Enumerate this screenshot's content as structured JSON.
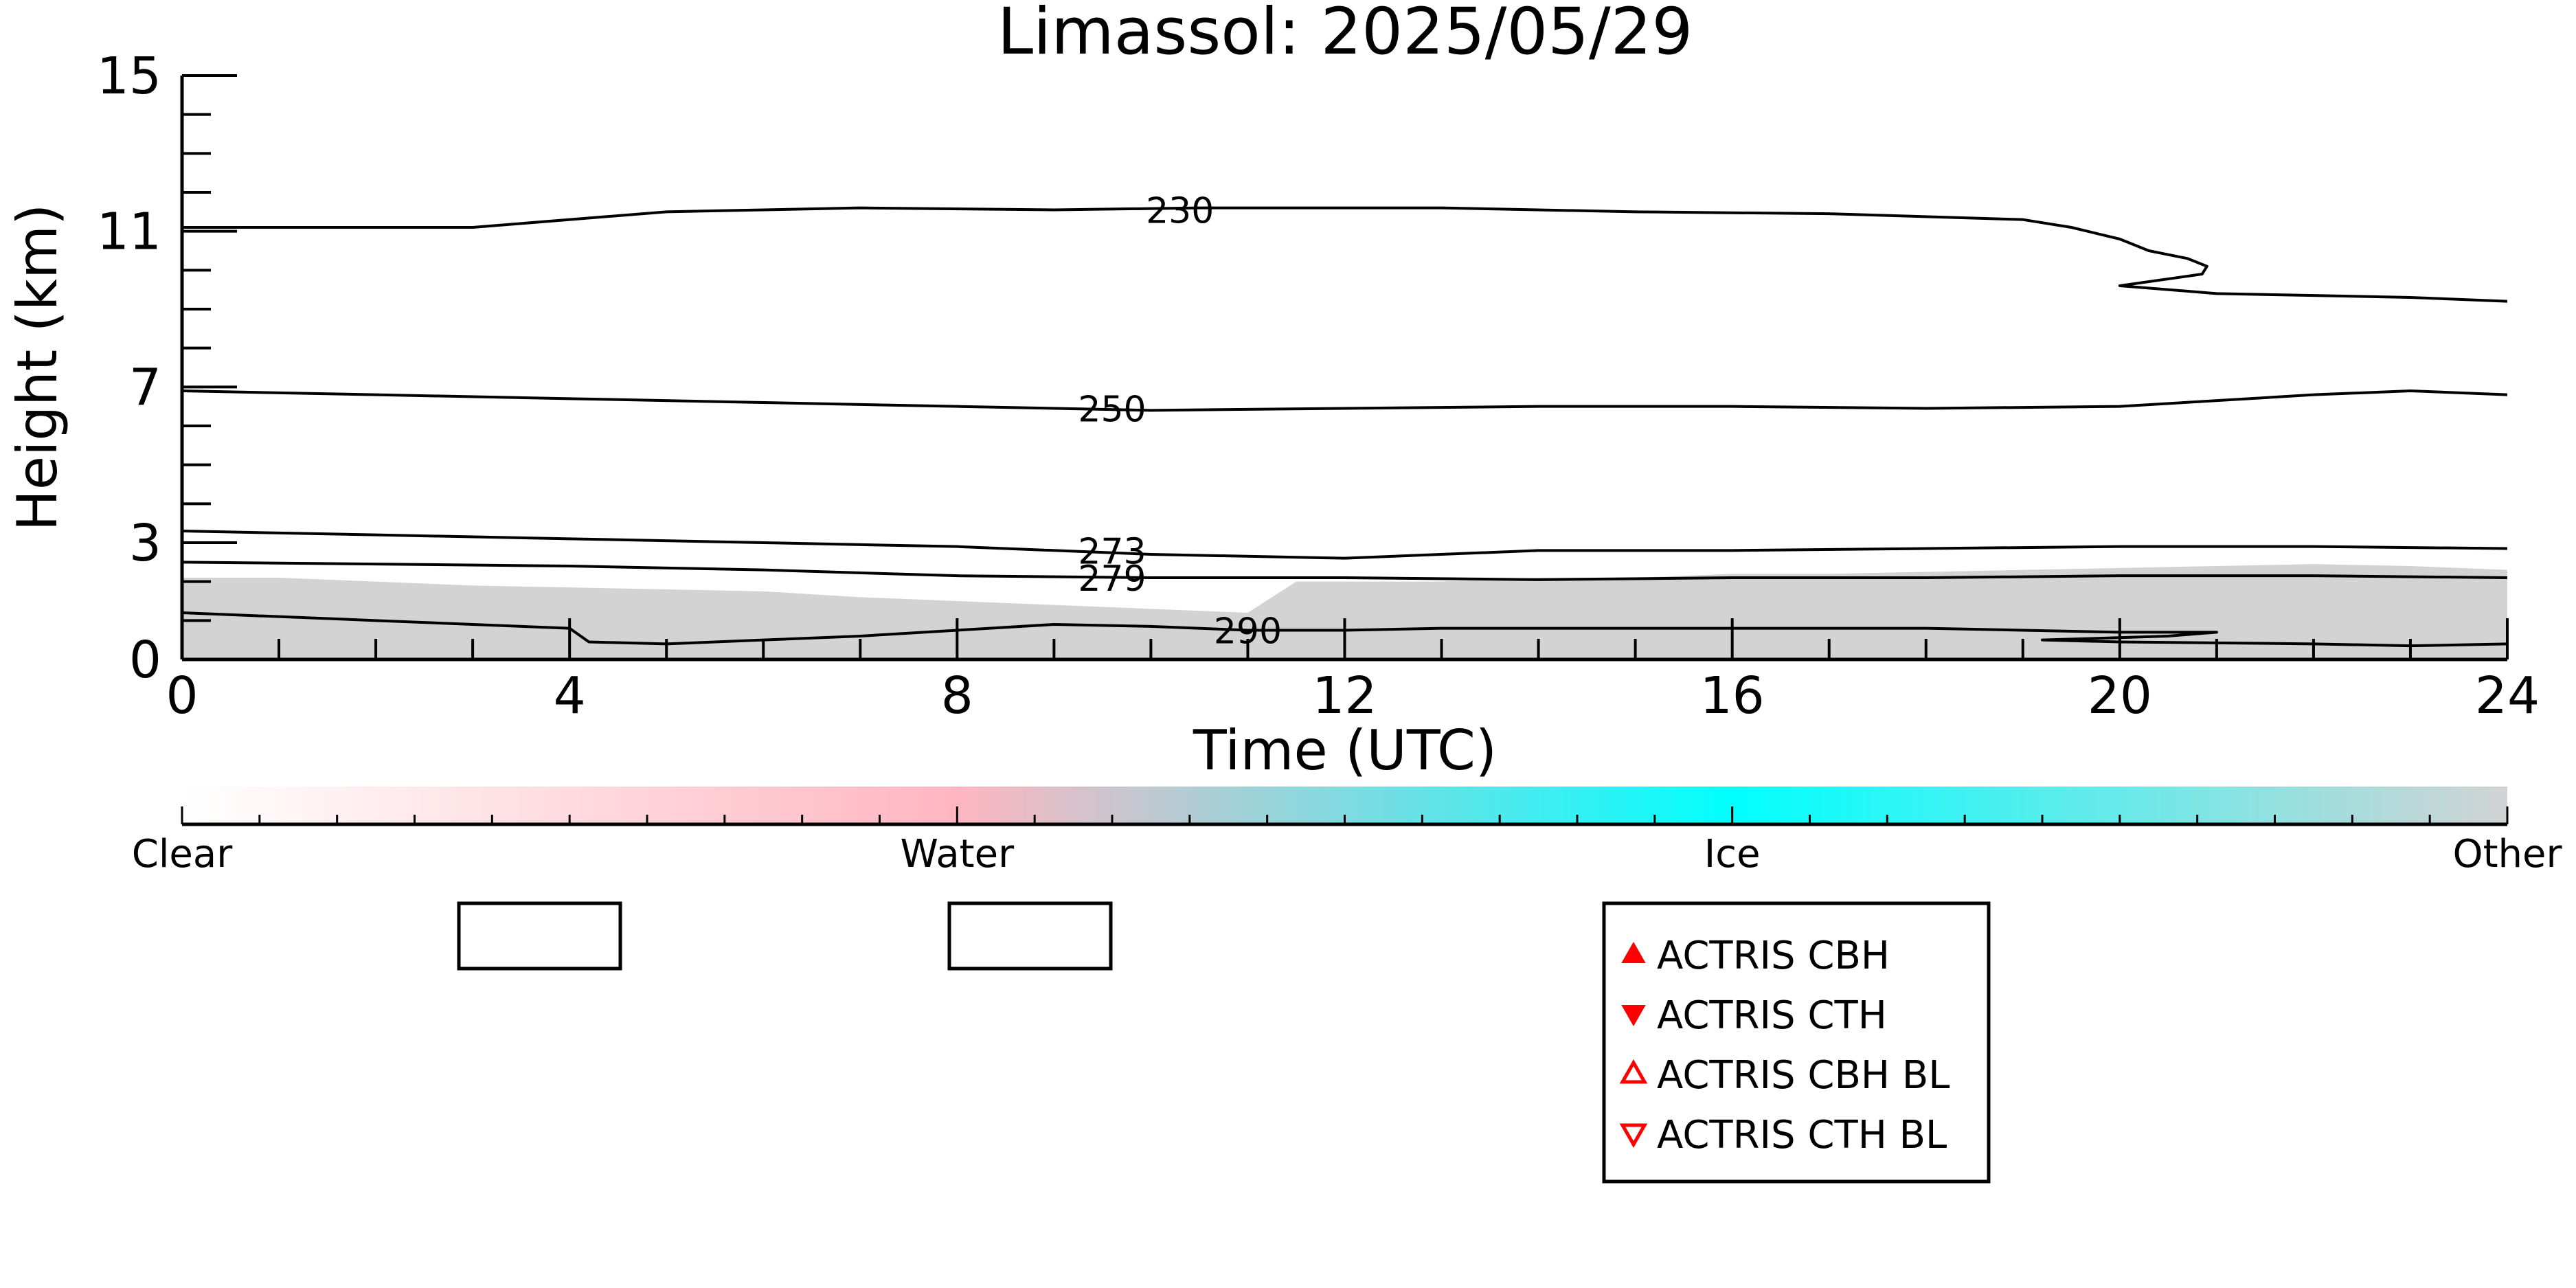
{
  "chart_data": {
    "type": "line",
    "title": "Limassol: 2025/05/29",
    "xlabel": "Time (UTC)",
    "ylabel": "Height (km)",
    "xlim": [
      0,
      24
    ],
    "ylim": [
      0,
      15
    ],
    "x_ticks": [
      "0",
      "4",
      "8",
      "12",
      "16",
      "20",
      "24"
    ],
    "y_ticks": [
      "0",
      "3",
      "7",
      "11",
      "15"
    ],
    "grid": false,
    "colors": {
      "cloud_fill": "#d3d3d3",
      "contour": "#000000",
      "marker": "#ff0000",
      "clear": "#ffffff",
      "water": "#ffb6c1",
      "ice": "#00ffff",
      "other": "#d3d3d3"
    },
    "cloud_layer": {
      "x": [
        0,
        1,
        2,
        3,
        4,
        5,
        6,
        7,
        8,
        9,
        10,
        11,
        11.5,
        12,
        13,
        14,
        15,
        16,
        17,
        18,
        19,
        20,
        21,
        22,
        23,
        24
      ],
      "top": [
        2.1,
        2.1,
        2.0,
        1.9,
        1.85,
        1.8,
        1.75,
        1.6,
        1.5,
        1.4,
        1.3,
        1.2,
        2.0,
        2.0,
        2.0,
        2.1,
        2.1,
        2.2,
        2.2,
        2.25,
        2.3,
        2.35,
        2.4,
        2.45,
        2.4,
        2.3
      ]
    },
    "series": [
      {
        "name": "230",
        "x": [
          0,
          3,
          5,
          7,
          9,
          10.5,
          12,
          13,
          15,
          17,
          19,
          19.5,
          20,
          20.3,
          20.7,
          20.9,
          20.85,
          20,
          21,
          22,
          23,
          24
        ],
        "y": [
          11.1,
          11.1,
          11.5,
          11.6,
          11.55,
          11.6,
          11.6,
          11.6,
          11.5,
          11.45,
          11.3,
          11.1,
          10.8,
          10.5,
          10.3,
          10.1,
          9.9,
          9.6,
          9.4,
          9.35,
          9.3,
          9.2
        ]
      },
      {
        "name": "250",
        "x": [
          0,
          2,
          4,
          6,
          8,
          10,
          12,
          14,
          16,
          18,
          20,
          22,
          23,
          24
        ],
        "y": [
          6.9,
          6.8,
          6.7,
          6.6,
          6.5,
          6.4,
          6.45,
          6.5,
          6.5,
          6.45,
          6.5,
          6.8,
          6.9,
          6.8
        ]
      },
      {
        "name": "273",
        "x": [
          0,
          2,
          4,
          6,
          8,
          10,
          12,
          14,
          16,
          18,
          20,
          22,
          24
        ],
        "y": [
          3.3,
          3.2,
          3.1,
          3.0,
          2.9,
          2.7,
          2.6,
          2.8,
          2.8,
          2.85,
          2.9,
          2.9,
          2.85
        ]
      },
      {
        "name": "279",
        "x": [
          0,
          2,
          4,
          6,
          8,
          10,
          12,
          14,
          16,
          18,
          20,
          22,
          24
        ],
        "y": [
          2.5,
          2.45,
          2.4,
          2.3,
          2.15,
          2.1,
          2.1,
          2.05,
          2.1,
          2.1,
          2.15,
          2.15,
          2.1
        ]
      },
      {
        "name": "290",
        "x": [
          0,
          2,
          4,
          4.2,
          5,
          6,
          7,
          8,
          9,
          10,
          11,
          12,
          13,
          14,
          15,
          16,
          17,
          18,
          19,
          20,
          21,
          20.5,
          19.2,
          20,
          22,
          23,
          24
        ],
        "y": [
          1.2,
          1.0,
          0.8,
          0.45,
          0.4,
          0.5,
          0.6,
          0.75,
          0.9,
          0.85,
          0.75,
          0.75,
          0.8,
          0.8,
          0.8,
          0.8,
          0.8,
          0.8,
          0.75,
          0.7,
          0.7,
          0.6,
          0.5,
          0.45,
          0.4,
          0.35,
          0.4
        ]
      }
    ],
    "contour_labels": [
      {
        "text": "230",
        "x": 10.3,
        "y": 11.55
      },
      {
        "text": "250",
        "x": 9.6,
        "y": 6.45
      },
      {
        "text": "273",
        "x": 9.6,
        "y": 2.8
      },
      {
        "text": "279",
        "x": 9.6,
        "y": 2.1
      },
      {
        "text": "290",
        "x": 11.0,
        "y": 0.75
      }
    ],
    "colorbar": {
      "categories": [
        "Clear",
        "Water",
        "Ice",
        "Other"
      ]
    },
    "legend": {
      "placement": "bottom-right",
      "entries": [
        {
          "label": "ACTRIS CBH",
          "marker": "triangle-up-filled"
        },
        {
          "label": "ACTRIS CTH",
          "marker": "triangle-down-filled"
        },
        {
          "label": "ACTRIS CBH BL",
          "marker": "triangle-up-open"
        },
        {
          "label": "ACTRIS CTH BL",
          "marker": "triangle-down-open"
        }
      ]
    },
    "empty_legend_boxes": 2
  }
}
